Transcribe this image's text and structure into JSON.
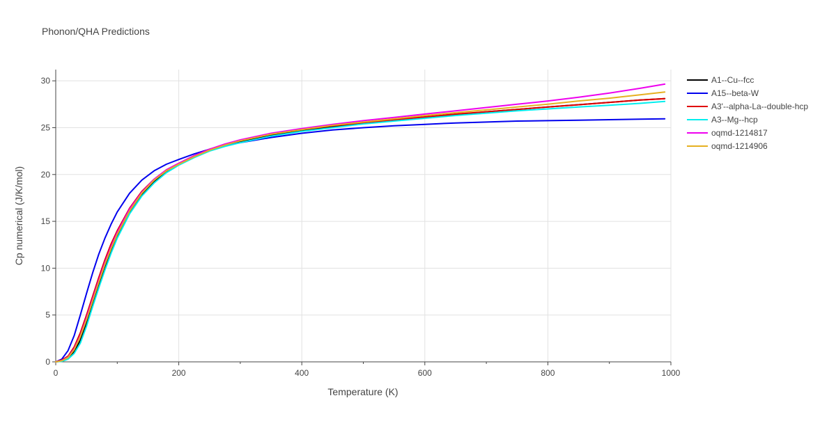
{
  "chart_data": {
    "type": "line",
    "title": "Phonon/QHA Predictions",
    "xlabel": "Temperature (K)",
    "ylabel": "Cp numerical (J/K/mol)",
    "xlim": [
      0,
      1000
    ],
    "ylim": [
      0,
      31.2
    ],
    "xticks": [
      0,
      200,
      400,
      600,
      800,
      1000
    ],
    "yticks": [
      0,
      5,
      10,
      15,
      20,
      25,
      30
    ],
    "grid": true,
    "legend_position": "top-right",
    "series": [
      {
        "name": "A1--Cu--fcc",
        "color": "#000000",
        "x": [
          0,
          10,
          20,
          30,
          40,
          50,
          60,
          70,
          80,
          90,
          100,
          120,
          140,
          160,
          180,
          200,
          225,
          250,
          275,
          300,
          350,
          400,
          450,
          500,
          550,
          600,
          650,
          700,
          750,
          800,
          850,
          900,
          950,
          990
        ],
        "y": [
          0,
          0.1,
          0.4,
          1.1,
          2.3,
          4.1,
          6.1,
          8.1,
          10.0,
          11.8,
          13.3,
          15.9,
          17.8,
          19.2,
          20.3,
          21.1,
          21.9,
          22.6,
          23.1,
          23.5,
          24.2,
          24.7,
          25.1,
          25.5,
          25.8,
          26.1,
          26.4,
          26.7,
          26.95,
          27.2,
          27.45,
          27.7,
          27.95,
          28.1
        ]
      },
      {
        "name": "A15--beta-W",
        "color": "#0000ee",
        "x": [
          0,
          10,
          20,
          30,
          40,
          50,
          60,
          70,
          80,
          90,
          100,
          120,
          140,
          160,
          180,
          200,
          225,
          250,
          275,
          300,
          350,
          400,
          450,
          500,
          550,
          600,
          650,
          700,
          750,
          800,
          850,
          900,
          950,
          990
        ],
        "y": [
          0,
          0.3,
          1.2,
          2.8,
          5.0,
          7.3,
          9.5,
          11.5,
          13.2,
          14.7,
          16.0,
          18.0,
          19.4,
          20.4,
          21.1,
          21.6,
          22.2,
          22.7,
          23.1,
          23.4,
          23.95,
          24.4,
          24.75,
          25.0,
          25.2,
          25.35,
          25.5,
          25.6,
          25.7,
          25.75,
          25.8,
          25.85,
          25.9,
          25.95
        ]
      },
      {
        "name": "A3'--alpha-La--double-hcp",
        "color": "#e00000",
        "x": [
          0,
          10,
          20,
          30,
          40,
          50,
          60,
          70,
          80,
          90,
          100,
          120,
          140,
          160,
          180,
          200,
          225,
          250,
          275,
          300,
          350,
          400,
          450,
          500,
          550,
          600,
          650,
          700,
          750,
          800,
          850,
          900,
          950,
          990
        ],
        "y": [
          0,
          0.2,
          0.6,
          1.6,
          3.1,
          5.0,
          7.0,
          9.0,
          10.9,
          12.6,
          14.0,
          16.4,
          18.2,
          19.5,
          20.5,
          21.2,
          22.0,
          22.7,
          23.2,
          23.6,
          24.3,
          24.8,
          25.2,
          25.55,
          25.85,
          26.15,
          26.45,
          26.7,
          26.95,
          27.2,
          27.45,
          27.7,
          27.95,
          28.1
        ]
      },
      {
        "name": "A3--Mg--hcp",
        "color": "#00eeee",
        "x": [
          0,
          10,
          20,
          30,
          40,
          50,
          60,
          70,
          80,
          90,
          100,
          120,
          140,
          160,
          180,
          200,
          225,
          250,
          275,
          300,
          350,
          400,
          450,
          500,
          550,
          600,
          650,
          700,
          750,
          800,
          850,
          900,
          950,
          990
        ],
        "y": [
          0,
          0.05,
          0.3,
          0.9,
          2.0,
          3.8,
          5.9,
          7.9,
          9.8,
          11.6,
          13.2,
          15.8,
          17.7,
          19.1,
          20.2,
          21.0,
          21.8,
          22.5,
          23.0,
          23.4,
          24.1,
          24.6,
          25.0,
          25.4,
          25.7,
          26.0,
          26.3,
          26.55,
          26.8,
          27.0,
          27.2,
          27.4,
          27.6,
          27.8
        ]
      },
      {
        "name": "oqmd-1214817",
        "color": "#ee00ee",
        "x": [
          0,
          10,
          20,
          30,
          40,
          50,
          60,
          70,
          80,
          90,
          100,
          120,
          140,
          160,
          180,
          200,
          225,
          250,
          275,
          300,
          350,
          400,
          450,
          500,
          550,
          600,
          650,
          700,
          750,
          800,
          850,
          900,
          950,
          990
        ],
        "y": [
          0,
          0.15,
          0.5,
          1.4,
          2.8,
          4.7,
          6.7,
          8.7,
          10.6,
          12.3,
          13.8,
          16.3,
          18.1,
          19.5,
          20.5,
          21.2,
          22.0,
          22.7,
          23.25,
          23.7,
          24.4,
          24.9,
          25.35,
          25.75,
          26.1,
          26.45,
          26.8,
          27.15,
          27.5,
          27.85,
          28.25,
          28.7,
          29.2,
          29.65
        ]
      },
      {
        "name": "oqmd-1214906",
        "color": "#e6b020",
        "x": [
          0,
          10,
          20,
          30,
          40,
          50,
          60,
          70,
          80,
          90,
          100,
          120,
          140,
          160,
          180,
          200,
          225,
          250,
          275,
          300,
          350,
          400,
          450,
          500,
          550,
          600,
          650,
          700,
          750,
          800,
          850,
          900,
          950,
          990
        ],
        "y": [
          0,
          0.12,
          0.45,
          1.3,
          2.7,
          4.5,
          6.5,
          8.5,
          10.4,
          12.1,
          13.6,
          16.1,
          18.0,
          19.4,
          20.4,
          21.1,
          21.9,
          22.6,
          23.15,
          23.6,
          24.3,
          24.8,
          25.25,
          25.6,
          25.95,
          26.3,
          26.6,
          26.9,
          27.2,
          27.5,
          27.85,
          28.15,
          28.5,
          28.8
        ]
      }
    ]
  }
}
